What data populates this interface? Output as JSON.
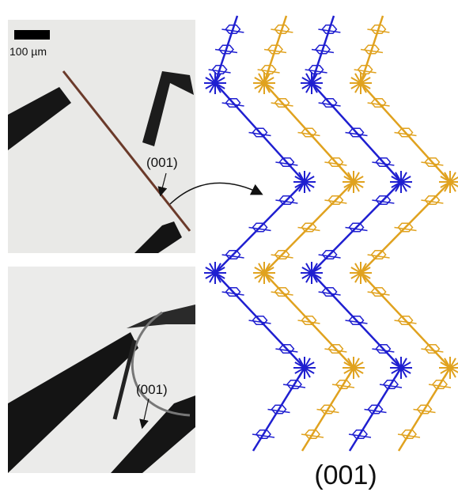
{
  "panels": [
    {
      "scale_bar": "100 µm",
      "label": "(001)"
    },
    {
      "label": "(001)"
    }
  ],
  "structure": {
    "label": "(001)"
  }
}
